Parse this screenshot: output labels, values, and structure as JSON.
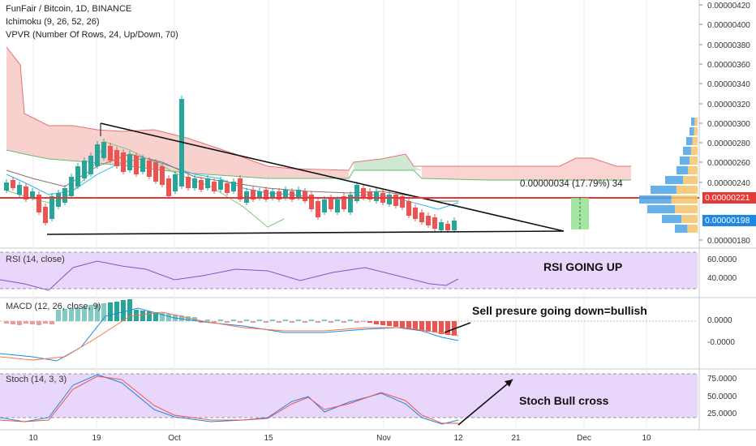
{
  "header": {
    "symbol_line": "FunFair / Bitcoin, 1D, BINANCE",
    "indicator_1": "Ichimoku (9, 26, 52, 26)",
    "indicator_2": "VPVR (Number Of Rows, 24, Up/Down, 70)"
  },
  "main": {
    "price_ticks": [
      "0.00000420",
      "0.00000400",
      "0.00000380",
      "0.00000360",
      "0.00000340",
      "0.00000320",
      "0.00000300",
      "0.00000280",
      "0.00000260",
      "0.00000240",
      "0.00000221",
      "0.00000198",
      "0.00000180"
    ],
    "last_price_tag": "0.00000198",
    "horizontal_line_tag": "0.00000221",
    "measure_label": "0.00000034 (17.79%) 34"
  },
  "rsi": {
    "label": "RSI (14, close)",
    "ticks": [
      "60.0000",
      "40.0000"
    ],
    "note": "RSI GOING UP"
  },
  "macd": {
    "label": "MACD (12, 26, close, 9)",
    "ticks": [
      "0.0000",
      "-0.0000"
    ],
    "note": "Sell presure going down=bullish"
  },
  "stoch": {
    "label": "Stoch (14, 3, 3)",
    "ticks": [
      "75.0000",
      "50.0000",
      "25.0000"
    ],
    "note": "Stoch Bull cross"
  },
  "time_axis": [
    "10",
    "19",
    "Oct",
    "15",
    "Nov",
    "12",
    "21",
    "Dec",
    "10"
  ],
  "colors": {
    "up": "#26a69a",
    "down": "#ef5350",
    "red_line": "#e53935",
    "panel_bg": "#e9d7fb",
    "kumo_red": "#f7c9c6",
    "kumo_green": "#cfe8d4"
  }
}
